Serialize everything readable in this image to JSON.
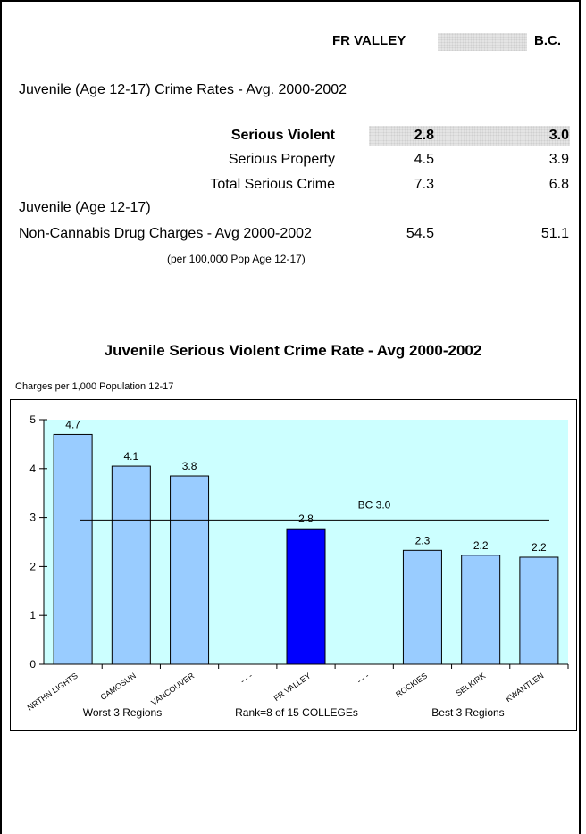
{
  "table": {
    "col_fr": "FR VALLEY",
    "col_bc": "B.C.",
    "section_title": "Juvenile (Age 12-17) Crime Rates - Avg. 2000-2002",
    "rows": [
      {
        "label": "Serious Violent",
        "fr": "2.8",
        "bc": "3.0",
        "bold": true
      },
      {
        "label": "Serious Property",
        "fr": "4.5",
        "bc": "3.9"
      },
      {
        "label": "Total Serious Crime",
        "fr": "7.3",
        "bc": "6.8"
      }
    ],
    "drug_label_1": "Juvenile (Age 12-17)",
    "drug_label_2": "Non-Cannabis Drug Charges - Avg 2000-2002",
    "drug_fr": "54.5",
    "drug_bc": "51.1",
    "drug_note": "(per 100,000 Pop Age 12-17)"
  },
  "chart_data": {
    "type": "bar",
    "title": "Juvenile Serious Violent Crime Rate - Avg 2000-2002",
    "ylabel": "Charges per 1,000 Population 12-17",
    "categories": [
      "NRTHN LIGHTS",
      "CAMOSUN",
      "VANCOUVER",
      "- - -",
      "FR VALLEY",
      "- - -",
      "ROCKIES",
      "SELKIRK",
      "KWANTLEN"
    ],
    "values": [
      4.7,
      4.05,
      3.85,
      null,
      2.77,
      null,
      2.33,
      2.23,
      2.19
    ],
    "data_labels": [
      "4.7",
      "4.1",
      "3.8",
      "",
      "2.8",
      "",
      "2.3",
      "2.2",
      "2.2"
    ],
    "highlight_index": 4,
    "reference_line": {
      "value": 2.95,
      "label": "BC 3.0"
    },
    "ylim": [
      0,
      5
    ],
    "yticks": [
      "0",
      "1",
      "2",
      "3",
      "4",
      "5"
    ],
    "group_labels": [
      "Worst 3 Regions",
      "Rank=8 of 15 COLLEGEs",
      "Best 3 Regions"
    ],
    "colors": {
      "bar": "#99ccff",
      "highlight": "#0000ff",
      "plot_bg": "#ccffff"
    }
  }
}
